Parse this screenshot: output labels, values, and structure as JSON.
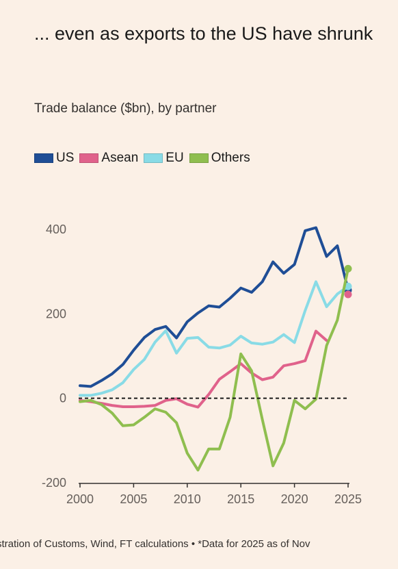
{
  "title": "... even as exports to the US have shrunk",
  "subtitle": "Trade balance ($bn), by partner",
  "source": "…stration of Customs, Wind, FT calculations • *Data for 2025 as of Nov",
  "chart_data": {
    "type": "line",
    "title": "... even as exports to the US have shrunk",
    "subtitle": "Trade balance ($bn), by partner",
    "xlabel": "",
    "ylabel": "",
    "x": [
      2000,
      2001,
      2002,
      2003,
      2004,
      2005,
      2006,
      2007,
      2008,
      2009,
      2010,
      2011,
      2012,
      2013,
      2014,
      2015,
      2016,
      2017,
      2018,
      2019,
      2020,
      2021,
      2022,
      2023,
      2024,
      2025
    ],
    "xlim": [
      2000,
      2025
    ],
    "ylim": [
      -200,
      400
    ],
    "x_ticks": [
      2000,
      2005,
      2010,
      2015,
      2020,
      2025
    ],
    "y_ticks": [
      -200,
      0,
      200,
      400
    ],
    "zero_line": "dashed",
    "grid": false,
    "legend_position": "top",
    "series": [
      {
        "name": "US",
        "color": "#1f4e96",
        "values": [
          30,
          28,
          42,
          58,
          80,
          114,
          144,
          163,
          170,
          143,
          181,
          202,
          219,
          216,
          237,
          261,
          251,
          276,
          323,
          296,
          317,
          397,
          404,
          336,
          361,
          256
        ]
      },
      {
        "name": "Asean",
        "color": "#e0628b",
        "values": [
          -5,
          -8,
          -12,
          -17,
          -20,
          -20,
          -19,
          -17,
          -5,
          -1,
          -14,
          -21,
          9,
          45,
          63,
          82,
          60,
          44,
          50,
          77,
          82,
          89,
          159,
          137,
          null,
          246
        ]
      },
      {
        "name": "EU",
        "color": "#89dbe6",
        "values": [
          7,
          7,
          12,
          20,
          37,
          68,
          92,
          133,
          160,
          107,
          142,
          144,
          121,
          119,
          126,
          147,
          131,
          128,
          133,
          151,
          132,
          208,
          276,
          217,
          247,
          265
        ]
      },
      {
        "name": "Others",
        "color": "#8fbe4f",
        "values": [
          -8,
          -5,
          -15,
          -35,
          -65,
          -63,
          -45,
          -25,
          -33,
          -58,
          -130,
          -170,
          -120,
          -120,
          -45,
          105,
          65,
          -50,
          -160,
          -106,
          -5,
          -25,
          -2,
          125,
          185,
          307
        ]
      }
    ]
  }
}
